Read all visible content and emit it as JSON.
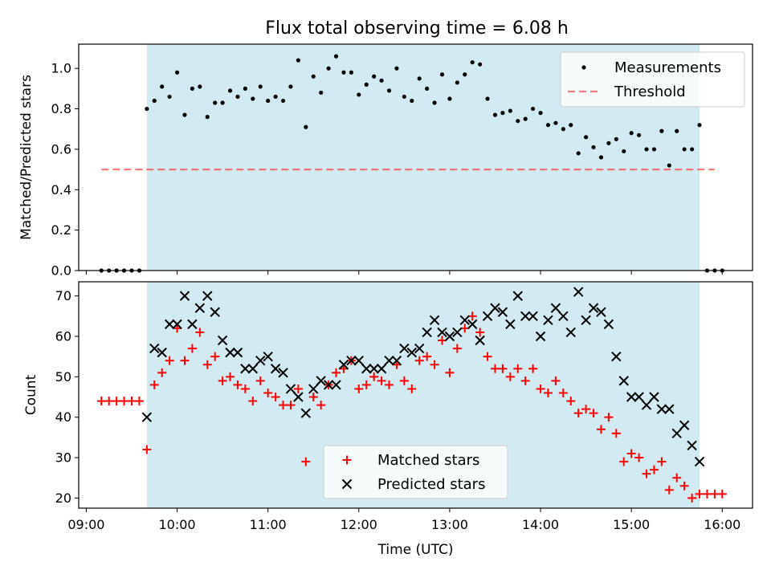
{
  "title": "Flux total observing time = 6.08 h",
  "colors": {
    "shade": "#add8e6",
    "threshold": "#ff0000",
    "matched": "#ff0000",
    "predicted": "#000000",
    "measurement": "#000000"
  },
  "chart_data": [
    {
      "type": "scatter",
      "ylabel": "Matched/Predicted stars",
      "xlim": [
        "08:55",
        "16:20"
      ],
      "ylim": [
        0,
        1.12
      ],
      "yticks": [
        "0.0",
        "0.2",
        "0.4",
        "0.6",
        "0.8",
        "1.0"
      ],
      "shaded_span": [
        "09:40",
        "15:45"
      ],
      "legend_position": "top-right",
      "legend": [
        "Measurements",
        "Threshold"
      ],
      "threshold": {
        "value": 0.5,
        "x_range": [
          "09:10",
          "15:55"
        ]
      },
      "series": [
        {
          "name": "Measurements",
          "marker": "dot",
          "x": [
            "09:10",
            "09:15",
            "09:20",
            "09:25",
            "09:30",
            "09:35",
            "09:40",
            "09:45",
            "09:50",
            "09:55",
            "10:00",
            "10:05",
            "10:10",
            "10:15",
            "10:20",
            "10:25",
            "10:30",
            "10:35",
            "10:40",
            "10:45",
            "10:50",
            "10:55",
            "11:00",
            "11:05",
            "11:10",
            "11:15",
            "11:20",
            "11:25",
            "11:30",
            "11:35",
            "11:40",
            "11:45",
            "11:50",
            "11:55",
            "12:00",
            "12:05",
            "12:10",
            "12:15",
            "12:20",
            "12:25",
            "12:30",
            "12:35",
            "12:40",
            "12:45",
            "12:50",
            "12:55",
            "13:00",
            "13:05",
            "13:10",
            "13:15",
            "13:20",
            "13:25",
            "13:30",
            "13:35",
            "13:40",
            "13:45",
            "13:50",
            "13:55",
            "14:00",
            "14:05",
            "14:10",
            "14:15",
            "14:20",
            "14:25",
            "14:30",
            "14:35",
            "14:40",
            "14:45",
            "14:50",
            "14:55",
            "15:00",
            "15:05",
            "15:10",
            "15:15",
            "15:20",
            "15:25",
            "15:30",
            "15:35",
            "15:40",
            "15:45",
            "15:50",
            "15:55",
            "16:00"
          ],
          "y": [
            0,
            0,
            0,
            0,
            0,
            0,
            0.8,
            0.84,
            0.91,
            0.86,
            0.98,
            0.77,
            0.9,
            0.91,
            0.76,
            0.83,
            0.83,
            0.89,
            0.86,
            0.9,
            0.85,
            0.91,
            0.84,
            0.86,
            0.84,
            0.91,
            1.04,
            0.71,
            0.96,
            0.88,
            1.0,
            1.06,
            0.98,
            0.98,
            0.87,
            0.92,
            0.96,
            0.94,
            0.89,
            1.0,
            0.86,
            0.84,
            0.95,
            0.9,
            0.83,
            0.97,
            0.85,
            0.93,
            0.97,
            1.03,
            1.02,
            0.85,
            0.77,
            0.78,
            0.79,
            0.74,
            0.75,
            0.8,
            0.78,
            0.72,
            0.73,
            0.7,
            0.72,
            0.58,
            0.66,
            0.61,
            0.56,
            0.63,
            0.65,
            0.59,
            0.68,
            0.67,
            0.6,
            0.6,
            0.69,
            0.52,
            0.69,
            0.6,
            0.6,
            0.72,
            0,
            0,
            0
          ]
        }
      ]
    },
    {
      "type": "scatter",
      "xlabel": "Time (UTC)",
      "ylabel": "Count",
      "xlim": [
        "08:55",
        "16:20"
      ],
      "ylim": [
        17.5,
        73.5
      ],
      "xticks": [
        "09:00",
        "10:00",
        "11:00",
        "12:00",
        "13:00",
        "14:00",
        "15:00",
        "16:00"
      ],
      "yticks": [
        "20",
        "30",
        "40",
        "50",
        "60",
        "70"
      ],
      "shaded_span": [
        "09:40",
        "15:45"
      ],
      "legend_position": "lower-center",
      "legend": [
        "Matched stars",
        "Predicted stars"
      ],
      "series": [
        {
          "name": "Matched stars",
          "marker": "plus",
          "x": [
            "09:10",
            "09:15",
            "09:20",
            "09:25",
            "09:30",
            "09:35",
            "09:40",
            "09:45",
            "09:50",
            "09:55",
            "10:00",
            "10:05",
            "10:10",
            "10:15",
            "10:20",
            "10:25",
            "10:30",
            "10:35",
            "10:40",
            "10:45",
            "10:50",
            "10:55",
            "11:00",
            "11:05",
            "11:10",
            "11:15",
            "11:20",
            "11:25",
            "11:30",
            "11:35",
            "11:40",
            "11:45",
            "11:50",
            "11:55",
            "12:00",
            "12:05",
            "12:10",
            "12:15",
            "12:20",
            "12:25",
            "12:30",
            "12:35",
            "12:40",
            "12:45",
            "12:50",
            "12:55",
            "13:00",
            "13:05",
            "13:10",
            "13:15",
            "13:20",
            "13:25",
            "13:30",
            "13:35",
            "13:40",
            "13:45",
            "13:50",
            "13:55",
            "14:00",
            "14:05",
            "14:10",
            "14:15",
            "14:20",
            "14:25",
            "14:30",
            "14:35",
            "14:40",
            "14:45",
            "14:50",
            "14:55",
            "15:00",
            "15:05",
            "15:10",
            "15:15",
            "15:20",
            "15:25",
            "15:30",
            "15:35",
            "15:40",
            "15:45",
            "15:50",
            "15:55",
            "16:00"
          ],
          "y": [
            44,
            44,
            44,
            44,
            44,
            44,
            32,
            48,
            51,
            54,
            62,
            54,
            57,
            61,
            53,
            55,
            49,
            50,
            48,
            47,
            44,
            49,
            46,
            45,
            43,
            43,
            47,
            29,
            45,
            43,
            48,
            51,
            52,
            54,
            47,
            48,
            50,
            49,
            48,
            53,
            49,
            47,
            54,
            55,
            53,
            59,
            51,
            57,
            62,
            65,
            61,
            55,
            52,
            52,
            50,
            52,
            49,
            52,
            47,
            46,
            49,
            46,
            44,
            41,
            42,
            41,
            37,
            40,
            36,
            29,
            31,
            30,
            26,
            27,
            29,
            22,
            25,
            23,
            20,
            21,
            21,
            21,
            21
          ]
        },
        {
          "name": "Predicted stars",
          "marker": "x",
          "x": [
            "09:40",
            "09:45",
            "09:50",
            "09:55",
            "10:00",
            "10:05",
            "10:10",
            "10:15",
            "10:20",
            "10:25",
            "10:30",
            "10:35",
            "10:40",
            "10:45",
            "10:50",
            "10:55",
            "11:00",
            "11:05",
            "11:10",
            "11:15",
            "11:20",
            "11:25",
            "11:30",
            "11:35",
            "11:40",
            "11:45",
            "11:50",
            "11:55",
            "12:00",
            "12:05",
            "12:10",
            "12:15",
            "12:20",
            "12:25",
            "12:30",
            "12:35",
            "12:40",
            "12:45",
            "12:50",
            "12:55",
            "13:00",
            "13:05",
            "13:10",
            "13:15",
            "13:20",
            "13:25",
            "13:30",
            "13:35",
            "13:40",
            "13:45",
            "13:50",
            "13:55",
            "14:00",
            "14:05",
            "14:10",
            "14:15",
            "14:20",
            "14:25",
            "14:30",
            "14:35",
            "14:40",
            "14:45",
            "14:50",
            "14:55",
            "15:00",
            "15:05",
            "15:10",
            "15:15",
            "15:20",
            "15:25",
            "15:30",
            "15:35",
            "15:40",
            "15:45"
          ],
          "y": [
            40,
            57,
            56,
            63,
            63,
            70,
            63,
            67,
            70,
            66,
            59,
            56,
            56,
            52,
            52,
            54,
            55,
            52,
            51,
            47,
            45,
            41,
            47,
            49,
            48,
            48,
            53,
            54,
            54,
            52,
            52,
            52,
            54,
            54,
            57,
            56,
            57,
            61,
            64,
            61,
            60,
            61,
            64,
            63,
            59,
            65,
            67,
            66,
            63,
            70,
            65,
            65,
            60,
            64,
            67,
            65,
            61,
            71,
            64,
            67,
            66,
            63,
            55,
            49,
            45,
            45,
            43,
            45,
            42,
            42,
            36,
            38,
            33,
            29
          ]
        }
      ]
    }
  ]
}
